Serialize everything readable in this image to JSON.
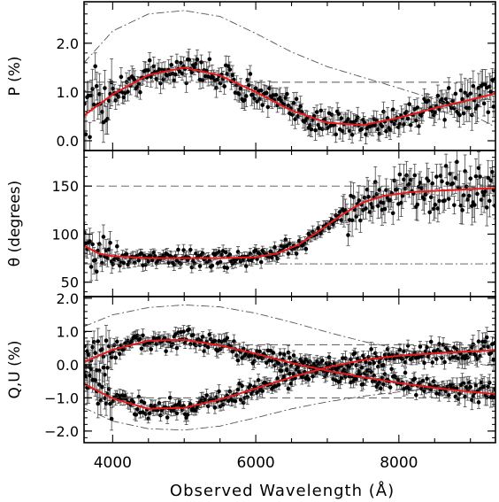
{
  "chart_data": [
    {
      "type": "scatter",
      "ylabel": "P (%)",
      "xlim": [
        3600,
        9350
      ],
      "ylim": [
        -0.2,
        2.85
      ],
      "yticks": [
        0.0,
        1.0,
        2.0
      ],
      "yticklabels": [
        "0.0",
        "1.0",
        "2.0"
      ],
      "grid": false,
      "model": {
        "x": [
          3600,
          4000,
          4500,
          5000,
          5500,
          6000,
          6500,
          7000,
          7500,
          8000,
          8500,
          9000,
          9350
        ],
        "y": [
          0.52,
          0.95,
          1.35,
          1.5,
          1.34,
          1.0,
          0.62,
          0.37,
          0.32,
          0.47,
          0.67,
          0.84,
          0.97
        ]
      },
      "reference_dash": {
        "y": 1.2
      },
      "reference_dashdot": {
        "x": [
          3600,
          4000,
          4500,
          5000,
          5500,
          6000,
          6500,
          7000,
          7500,
          8000,
          8500,
          9000,
          9350
        ],
        "y": [
          1.6,
          2.25,
          2.6,
          2.67,
          2.55,
          2.2,
          1.82,
          1.52,
          1.3,
          1.08,
          0.85,
          0.55,
          0.28
        ]
      },
      "data_series": {
        "scatter": 0.2,
        "errorbar": 0.17
      }
    },
    {
      "type": "scatter",
      "ylabel": "θ (degrees)",
      "xlim": [
        3600,
        9350
      ],
      "ylim": [
        35,
        187
      ],
      "yticks": [
        50,
        100,
        150
      ],
      "yticklabels": [
        "50",
        "100",
        "150"
      ],
      "grid": false,
      "model": {
        "x": [
          3600,
          3800,
          4000,
          4500,
          5000,
          5500,
          6000,
          6300,
          6600,
          6900,
          7200,
          7500,
          7800,
          8200,
          8800,
          9350
        ],
        "y": [
          88,
          80,
          77,
          75,
          75,
          75,
          76,
          80,
          89,
          104,
          120,
          133,
          140,
          144,
          146,
          148
        ]
      },
      "reference_dash": {
        "y": 150
      },
      "reference_dashdot": {
        "y": 69
      },
      "data_series": {
        "scatter": 6,
        "errorbar": 5
      }
    },
    {
      "type": "scatter",
      "ylabel": "Q,U (%)",
      "xlim": [
        3600,
        9350
      ],
      "ylim": [
        -2.35,
        2.05
      ],
      "yticks": [
        -2.0,
        -1.0,
        0.0,
        1.0,
        2.0
      ],
      "yticklabels": [
        "−2.0",
        "−1.0",
        "0.0",
        "1.0",
        "2.0"
      ],
      "grid": false,
      "series": [
        {
          "x": [
            3600,
            4000,
            4500,
            5000,
            5500,
            6000,
            6500,
            7000,
            7500,
            8000,
            8500,
            9000,
            9350
          ],
          "y": [
            0.08,
            0.45,
            0.72,
            0.75,
            0.58,
            0.33,
            0.05,
            -0.18,
            -0.38,
            -0.55,
            -0.7,
            -0.82,
            -0.88
          ]
        },
        {
          "x": [
            3600,
            4000,
            4500,
            5000,
            5500,
            6000,
            6500,
            7000,
            7500,
            8000,
            8500,
            9000,
            9350
          ],
          "y": [
            -0.58,
            -1.02,
            -1.33,
            -1.3,
            -1.05,
            -0.72,
            -0.38,
            -0.08,
            0.14,
            0.27,
            0.34,
            0.4,
            0.43
          ]
        }
      ],
      "reference_dash": [
        {
          "y": 0.6
        },
        {
          "y": -1.0
        }
      ],
      "reference_dashdot": [
        {
          "x": [
            3600,
            4000,
            4500,
            5000,
            5500,
            6000,
            6500,
            7000,
            7500,
            8000,
            8500,
            9000,
            9350
          ],
          "y": [
            1.15,
            1.5,
            1.72,
            1.8,
            1.74,
            1.55,
            1.28,
            0.98,
            0.7,
            0.48,
            0.28,
            0.05,
            -0.05
          ]
        },
        {
          "x": [
            3600,
            4000,
            4500,
            5000,
            5500,
            6000,
            6500,
            7000,
            7500,
            8000,
            8500,
            9000,
            9350
          ],
          "y": [
            -1.3,
            -1.7,
            -1.93,
            -1.97,
            -1.85,
            -1.6,
            -1.33,
            -1.12,
            -0.95,
            -0.82,
            -0.7,
            -0.58,
            -0.5
          ]
        }
      ],
      "data_series": {
        "scatter": 0.2,
        "errorbar": 0.17
      }
    }
  ],
  "x_axis": {
    "label": "Observed Wavelength (Å)",
    "ticks": [
      4000,
      6000,
      8000
    ],
    "ticklabels": [
      "4000",
      "6000",
      "8000"
    ],
    "minor_step": 500
  },
  "colors": {
    "data": "#000000",
    "model": "#e8191c",
    "references": "#555555",
    "axes": "#000000"
  }
}
